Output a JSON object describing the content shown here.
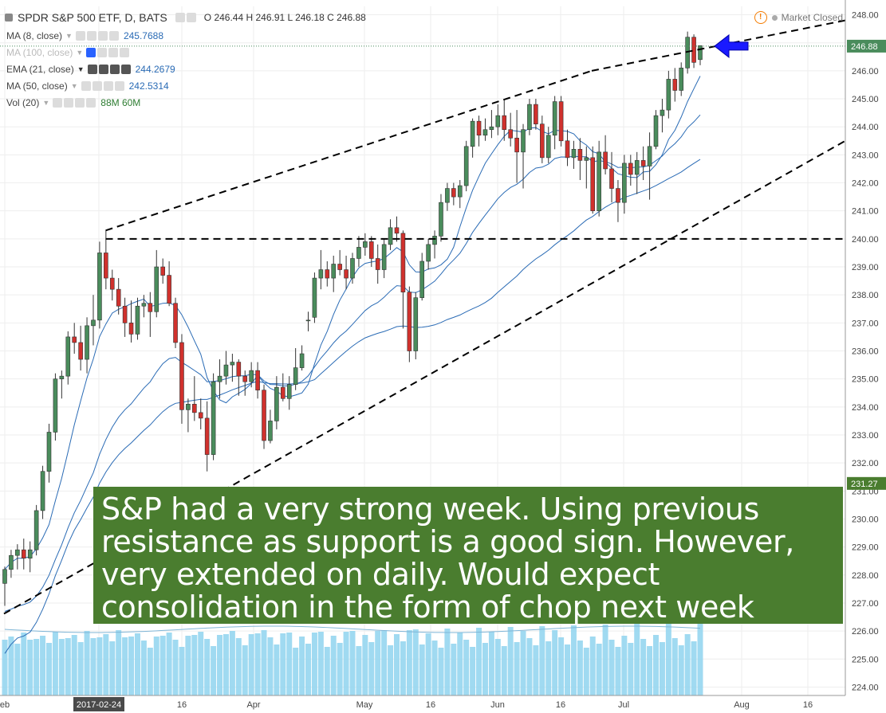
{
  "header": {
    "title": "SPDR S&P 500 ETF, D, BATS",
    "ohlc": "O 246.44  H 246.91  L 246.18  C 246.88",
    "market_status": "Market Closed"
  },
  "indicators": [
    {
      "label": "MA (8, close)",
      "value": "245.7688",
      "color": "#2a6bb5"
    },
    {
      "label": "MA (100, close)",
      "value": "",
      "color": "#2a6bb5"
    },
    {
      "label": "EMA (21, close)",
      "value": "244.2679",
      "color": "#2a6bb5"
    },
    {
      "label": "MA (50, close)",
      "value": "242.5314",
      "color": "#2a6bb5"
    },
    {
      "label": "Vol (20)",
      "value": "88M  60M",
      "color": "#2e7d32"
    }
  ],
  "annotation": {
    "lines": [
      "S&P had a very strong week. Using previous",
      "resistance as support is a good sign. However,",
      "very extended on daily. Would expect",
      "consolidation in the form of chop next week"
    ]
  },
  "chart_data": {
    "type": "candlestick",
    "price_axis": {
      "min": 223.7,
      "max": 248.3,
      "ticks": [
        "248.00",
        "247.00",
        "246.00",
        "245.00",
        "244.00",
        "243.00",
        "242.00",
        "241.00",
        "240.00",
        "239.00",
        "238.00",
        "237.00",
        "236.00",
        "235.00",
        "234.00",
        "233.00",
        "232.00",
        "231.00",
        "230.00",
        "229.00",
        "228.00",
        "227.00",
        "226.00",
        "225.00",
        "224.00"
      ]
    },
    "price_labels": [
      {
        "text": "246.88",
        "value": 246.88,
        "color": "#4a8c5c"
      },
      {
        "text": "231.27",
        "value": 231.27,
        "color": "#4a7d2f"
      }
    ],
    "time_axis": {
      "labels": [
        "eb",
        "2017-02-24",
        "16",
        "Apr",
        "May",
        "16",
        "Jun",
        "16",
        "Jul",
        "Aug",
        "16"
      ],
      "highlighted": "2017-02-24"
    },
    "colors": {
      "up": "#4a8c5c",
      "down": "#d0312d",
      "ma": "#2a6bb5",
      "volume": "#8fd3ee"
    },
    "trendlines": [
      {
        "name": "upper-channel",
        "from": [
          0.03,
          240.3
        ],
        "to": [
          0.7,
          246.0
        ],
        "extend": [
          0.7,
          246.0,
          1.0,
          247.8
        ]
      },
      {
        "name": "lower-channel",
        "from": [
          -0.02,
          226.2
        ],
        "to": [
          1.0,
          243.5
        ]
      },
      {
        "name": "horizontal-support",
        "value": 240.0
      }
    ],
    "candles": [
      [
        227.7,
        228.3,
        226.9,
        228.2
      ],
      [
        228.2,
        228.9,
        227.9,
        228.7
      ],
      [
        228.7,
        229.1,
        228.2,
        228.9
      ],
      [
        228.9,
        229.3,
        228.2,
        228.6
      ],
      [
        228.6,
        229.2,
        228.1,
        228.9
      ],
      [
        228.9,
        230.5,
        228.7,
        230.3
      ],
      [
        230.3,
        231.9,
        230.0,
        231.7
      ],
      [
        231.7,
        233.4,
        231.3,
        233.1
      ],
      [
        233.1,
        235.2,
        232.8,
        235.0
      ],
      [
        235.0,
        235.3,
        234.3,
        235.1
      ],
      [
        235.1,
        236.7,
        234.8,
        236.5
      ],
      [
        236.5,
        237.0,
        235.9,
        236.3
      ],
      [
        236.3,
        236.9,
        235.3,
        235.7
      ],
      [
        235.7,
        237.2,
        235.2,
        236.9
      ],
      [
        236.9,
        238.0,
        236.2,
        237.1
      ],
      [
        237.1,
        239.9,
        236.8,
        239.5
      ],
      [
        239.5,
        240.3,
        238.2,
        238.6
      ],
      [
        238.6,
        238.9,
        237.8,
        238.2
      ],
      [
        238.2,
        238.6,
        237.3,
        237.6
      ],
      [
        237.6,
        237.9,
        236.5,
        237.0
      ],
      [
        237.0,
        237.8,
        236.3,
        236.6
      ],
      [
        236.6,
        237.9,
        236.4,
        237.6
      ],
      [
        237.6,
        238.0,
        237.2,
        237.7
      ],
      [
        237.7,
        238.1,
        236.5,
        237.4
      ],
      [
        237.4,
        239.6,
        237.2,
        239.0
      ],
      [
        239.0,
        239.3,
        238.4,
        238.7
      ],
      [
        238.7,
        239.2,
        237.6,
        237.7
      ],
      [
        237.7,
        237.9,
        236.1,
        236.3
      ],
      [
        236.3,
        236.6,
        233.4,
        233.9
      ],
      [
        233.9,
        234.3,
        233.1,
        234.1
      ],
      [
        234.1,
        235.1,
        233.5,
        233.8
      ],
      [
        233.8,
        234.3,
        233.2,
        233.6
      ],
      [
        233.6,
        234.2,
        231.7,
        232.3
      ],
      [
        232.3,
        235.2,
        232.1,
        234.9
      ],
      [
        234.9,
        235.7,
        234.3,
        235.1
      ],
      [
        235.1,
        236.0,
        234.8,
        235.5
      ],
      [
        235.5,
        235.9,
        234.9,
        235.6
      ],
      [
        235.6,
        235.7,
        234.4,
        235.1
      ],
      [
        235.1,
        235.3,
        234.4,
        234.9
      ],
      [
        234.9,
        235.6,
        234.7,
        235.3
      ],
      [
        235.3,
        235.6,
        234.3,
        234.6
      ],
      [
        234.6,
        234.8,
        232.5,
        232.8
      ],
      [
        232.8,
        233.9,
        232.7,
        233.5
      ],
      [
        233.5,
        235.1,
        233.2,
        234.7
      ],
      [
        234.7,
        235.2,
        234.2,
        234.3
      ],
      [
        234.3,
        235.1,
        233.9,
        234.8
      ],
      [
        234.8,
        236.1,
        234.6,
        235.4
      ],
      [
        235.4,
        236.2,
        235.3,
        235.9
      ],
      [
        237.1,
        237.4,
        236.7,
        237.1
      ],
      [
        237.2,
        238.8,
        237.0,
        238.6
      ],
      [
        238.6,
        239.6,
        238.2,
        238.9
      ],
      [
        238.9,
        239.2,
        238.3,
        238.6
      ],
      [
        238.6,
        239.4,
        238.1,
        239.1
      ],
      [
        239.1,
        239.6,
        238.7,
        238.9
      ],
      [
        238.9,
        239.4,
        238.2,
        238.6
      ],
      [
        238.6,
        239.5,
        238.4,
        239.3
      ],
      [
        239.3,
        240.1,
        239.0,
        239.7
      ],
      [
        239.7,
        240.2,
        239.4,
        239.9
      ],
      [
        239.9,
        240.1,
        239.0,
        239.3
      ],
      [
        239.3,
        239.8,
        238.4,
        238.9
      ],
      [
        238.9,
        240.0,
        238.6,
        239.8
      ],
      [
        239.8,
        240.7,
        239.6,
        240.4
      ],
      [
        240.4,
        240.8,
        239.9,
        240.2
      ],
      [
        240.2,
        240.3,
        236.8,
        238.1
      ],
      [
        238.1,
        238.3,
        235.6,
        236.0
      ],
      [
        236.0,
        238.1,
        235.7,
        237.9
      ],
      [
        237.9,
        239.5,
        237.8,
        239.2
      ],
      [
        239.2,
        240.0,
        238.9,
        239.8
      ],
      [
        239.8,
        240.3,
        239.3,
        240.1
      ],
      [
        240.1,
        241.6,
        239.9,
        241.3
      ],
      [
        241.3,
        242.0,
        241.0,
        241.8
      ],
      [
        241.8,
        242.0,
        241.2,
        241.5
      ],
      [
        241.5,
        242.1,
        241.1,
        241.9
      ],
      [
        241.9,
        243.5,
        241.7,
        243.3
      ],
      [
        243.3,
        244.3,
        242.9,
        244.2
      ],
      [
        244.2,
        244.4,
        243.3,
        243.7
      ],
      [
        243.7,
        244.3,
        243.5,
        243.9
      ],
      [
        243.9,
        244.6,
        243.6,
        244.0
      ],
      [
        244.0,
        244.8,
        243.7,
        244.4
      ],
      [
        244.4,
        245.0,
        243.5,
        243.9
      ],
      [
        243.9,
        244.5,
        243.3,
        243.6
      ],
      [
        243.6,
        244.6,
        242.0,
        243.1
      ],
      [
        243.1,
        244.1,
        241.8,
        243.9
      ],
      [
        243.9,
        245.0,
        243.7,
        244.8
      ],
      [
        244.8,
        245.0,
        243.9,
        244.1
      ],
      [
        244.1,
        244.4,
        242.7,
        242.9
      ],
      [
        242.9,
        244.0,
        242.7,
        243.7
      ],
      [
        243.7,
        245.1,
        243.2,
        244.9
      ],
      [
        244.9,
        245.1,
        243.3,
        243.5
      ],
      [
        243.5,
        243.9,
        242.6,
        242.9
      ],
      [
        242.9,
        243.5,
        242.5,
        243.2
      ],
      [
        243.2,
        243.6,
        242.1,
        242.8
      ],
      [
        242.8,
        243.3,
        241.8,
        242.9
      ],
      [
        242.9,
        243.3,
        240.9,
        241.0
      ],
      [
        241.0,
        243.5,
        240.8,
        243.1
      ],
      [
        243.1,
        243.7,
        242.3,
        242.5
      ],
      [
        242.5,
        243.1,
        241.3,
        241.8
      ],
      [
        241.8,
        242.1,
        240.6,
        241.3
      ],
      [
        241.3,
        243.0,
        240.9,
        242.7
      ],
      [
        242.7,
        243.0,
        241.9,
        242.3
      ],
      [
        242.3,
        243.1,
        241.6,
        242.8
      ],
      [
        242.8,
        243.3,
        242.1,
        242.6
      ],
      [
        242.6,
        243.8,
        241.4,
        243.3
      ],
      [
        243.3,
        244.6,
        243.2,
        244.4
      ],
      [
        244.4,
        245.0,
        243.8,
        244.6
      ],
      [
        244.6,
        246.0,
        244.3,
        245.7
      ],
      [
        245.7,
        246.1,
        244.9,
        245.3
      ],
      [
        245.3,
        246.3,
        245.1,
        246.1
      ],
      [
        246.1,
        247.4,
        245.9,
        247.2
      ],
      [
        247.2,
        247.3,
        246.1,
        246.3
      ],
      [
        246.4,
        246.9,
        246.2,
        246.9
      ]
    ],
    "volume_note": "Volume histogram along bottom, axis 0 at bottom of pane"
  }
}
